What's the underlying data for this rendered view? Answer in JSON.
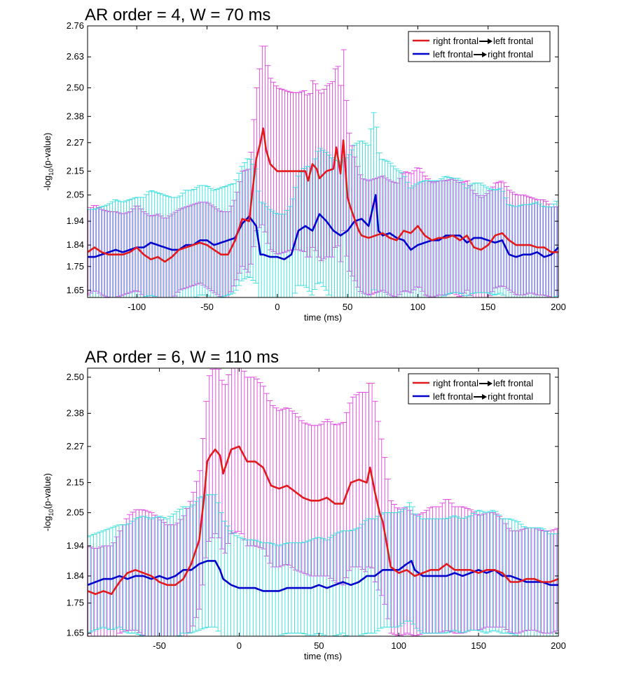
{
  "chart_data": [
    {
      "type": "line",
      "title": "AR order = 4, W = 70 ms",
      "xlabel": "time (ms)",
      "ylabel_main": "-log",
      "ylabel_sub": "10",
      "ylabel_tail": "(p-value)",
      "xlim": [
        -135,
        200
      ],
      "ylim": [
        1.62,
        2.76
      ],
      "xticks": [
        -100,
        -50,
        0,
        50,
        100,
        150,
        200
      ],
      "yticks": [
        1.65,
        1.75,
        1.84,
        1.94,
        2.05,
        2.15,
        2.27,
        2.38,
        2.5,
        2.63,
        2.76
      ],
      "grid": false,
      "legend_position": "top-right",
      "series": [
        {
          "name": "right frontal→left frontal",
          "legend_prefix": "right frontal",
          "legend_suffix": "left frontal",
          "color": "#e31a1c",
          "errorbar_color": "#e040e0",
          "x": [
            -135,
            -130,
            -125,
            -120,
            -115,
            -110,
            -105,
            -100,
            -95,
            -90,
            -85,
            -80,
            -75,
            -70,
            -65,
            -60,
            -55,
            -50,
            -45,
            -40,
            -35,
            -30,
            -25,
            -20,
            -18,
            -15,
            -12,
            -10,
            -8,
            -5,
            0,
            5,
            10,
            15,
            20,
            22,
            25,
            28,
            30,
            35,
            40,
            42,
            45,
            47,
            50,
            52,
            55,
            58,
            60,
            65,
            70,
            75,
            80,
            85,
            90,
            95,
            100,
            105,
            110,
            115,
            120,
            125,
            130,
            135,
            140,
            145,
            150,
            155,
            160,
            165,
            170,
            175,
            180,
            185,
            190,
            195,
            200
          ],
          "y": [
            1.81,
            1.83,
            1.81,
            1.8,
            1.8,
            1.8,
            1.81,
            1.83,
            1.8,
            1.78,
            1.79,
            1.77,
            1.79,
            1.82,
            1.83,
            1.84,
            1.85,
            1.84,
            1.82,
            1.8,
            1.8,
            1.86,
            1.95,
            1.94,
            2.05,
            2.2,
            2.27,
            2.33,
            2.24,
            2.18,
            2.15,
            2.15,
            2.15,
            2.15,
            2.15,
            2.11,
            2.18,
            2.16,
            2.12,
            2.15,
            2.16,
            2.25,
            2.14,
            2.28,
            2.04,
            2.0,
            1.95,
            1.9,
            1.88,
            1.87,
            1.88,
            1.89,
            1.87,
            1.86,
            1.9,
            1.89,
            1.92,
            1.88,
            1.86,
            1.87,
            1.87,
            1.88,
            1.86,
            1.88,
            1.83,
            1.82,
            1.84,
            1.88,
            1.89,
            1.86,
            1.84,
            1.84,
            1.84,
            1.83,
            1.83,
            1.81,
            1.81
          ],
          "err": [
            0.18,
            0.18,
            0.18,
            0.18,
            0.18,
            0.17,
            0.17,
            0.18,
            0.18,
            0.18,
            0.18,
            0.18,
            0.18,
            0.17,
            0.17,
            0.17,
            0.17,
            0.18,
            0.18,
            0.18,
            0.18,
            0.18,
            0.2,
            0.22,
            0.25,
            0.3,
            0.35,
            0.4,
            0.38,
            0.36,
            0.35,
            0.34,
            0.33,
            0.33,
            0.34,
            0.34,
            0.35,
            0.35,
            0.35,
            0.36,
            0.37,
            0.38,
            0.37,
            0.38,
            0.3,
            0.28,
            0.26,
            0.25,
            0.24,
            0.24,
            0.24,
            0.24,
            0.24,
            0.24,
            0.25,
            0.25,
            0.25,
            0.25,
            0.24,
            0.24,
            0.24,
            0.24,
            0.24,
            0.23,
            0.23,
            0.22,
            0.22,
            0.22,
            0.22,
            0.21,
            0.21,
            0.21,
            0.2,
            0.2,
            0.2,
            0.19,
            0.19
          ]
        },
        {
          "name": "left frontal→right frontal",
          "legend_prefix": "left frontal",
          "legend_suffix": "right frontal",
          "color": "#0000cc",
          "errorbar_color": "#33dddd",
          "x": [
            -135,
            -130,
            -125,
            -120,
            -115,
            -110,
            -105,
            -100,
            -95,
            -90,
            -85,
            -80,
            -75,
            -70,
            -65,
            -60,
            -55,
            -50,
            -45,
            -40,
            -35,
            -30,
            -25,
            -20,
            -15,
            -12,
            -10,
            -5,
            0,
            5,
            10,
            15,
            20,
            25,
            30,
            35,
            40,
            45,
            50,
            55,
            60,
            65,
            70,
            72,
            75,
            80,
            85,
            90,
            95,
            100,
            105,
            110,
            115,
            120,
            125,
            130,
            135,
            140,
            145,
            150,
            155,
            160,
            165,
            170,
            175,
            180,
            185,
            190,
            195,
            200
          ],
          "y": [
            1.79,
            1.79,
            1.8,
            1.81,
            1.82,
            1.81,
            1.82,
            1.83,
            1.83,
            1.85,
            1.84,
            1.83,
            1.82,
            1.82,
            1.84,
            1.84,
            1.86,
            1.86,
            1.84,
            1.85,
            1.86,
            1.87,
            1.93,
            1.96,
            1.92,
            1.8,
            1.8,
            1.79,
            1.79,
            1.78,
            1.8,
            1.9,
            1.92,
            1.9,
            1.97,
            1.94,
            1.9,
            1.88,
            1.9,
            1.94,
            1.95,
            1.92,
            2.05,
            1.9,
            1.88,
            1.89,
            1.87,
            1.86,
            1.82,
            1.84,
            1.85,
            1.86,
            1.86,
            1.88,
            1.88,
            1.88,
            1.85,
            1.87,
            1.87,
            1.86,
            1.85,
            1.86,
            1.8,
            1.79,
            1.8,
            1.8,
            1.81,
            1.79,
            1.8,
            1.83
          ],
          "err": [
            0.2,
            0.2,
            0.2,
            0.2,
            0.21,
            0.21,
            0.21,
            0.21,
            0.21,
            0.22,
            0.22,
            0.22,
            0.22,
            0.22,
            0.23,
            0.23,
            0.23,
            0.23,
            0.23,
            0.23,
            0.23,
            0.23,
            0.24,
            0.25,
            0.24,
            0.22,
            0.22,
            0.2,
            0.18,
            0.19,
            0.21,
            0.23,
            0.25,
            0.27,
            0.28,
            0.29,
            0.3,
            0.31,
            0.31,
            0.32,
            0.33,
            0.34,
            0.38,
            0.34,
            0.32,
            0.3,
            0.29,
            0.28,
            0.26,
            0.26,
            0.26,
            0.25,
            0.25,
            0.25,
            0.24,
            0.24,
            0.23,
            0.23,
            0.23,
            0.22,
            0.22,
            0.22,
            0.21,
            0.21,
            0.21,
            0.21,
            0.21,
            0.21,
            0.2,
            0.2
          ]
        }
      ]
    },
    {
      "type": "line",
      "title": "AR order = 6, W = 110 ms",
      "xlabel": "time (ms)",
      "ylabel_main": "-log",
      "ylabel_sub": "10",
      "ylabel_tail": "(p-value)",
      "xlim": [
        -95,
        200
      ],
      "ylim": [
        1.64,
        2.53
      ],
      "xticks": [
        -50,
        0,
        50,
        100,
        150,
        200
      ],
      "yticks": [
        1.65,
        1.75,
        1.84,
        1.94,
        2.05,
        2.15,
        2.27,
        2.38,
        2.5
      ],
      "grid": false,
      "legend_position": "top-right",
      "series": [
        {
          "name": "right frontal→left frontal",
          "legend_prefix": "right frontal",
          "legend_suffix": "left frontal",
          "color": "#e31a1c",
          "errorbar_color": "#e040e0",
          "x": [
            -95,
            -90,
            -85,
            -80,
            -75,
            -70,
            -65,
            -60,
            -55,
            -50,
            -45,
            -40,
            -35,
            -30,
            -25,
            -22,
            -20,
            -18,
            -15,
            -12,
            -10,
            -5,
            0,
            5,
            10,
            15,
            20,
            25,
            30,
            35,
            40,
            45,
            50,
            55,
            60,
            65,
            70,
            75,
            80,
            82,
            85,
            88,
            90,
            95,
            100,
            105,
            110,
            115,
            120,
            125,
            130,
            135,
            140,
            145,
            150,
            155,
            160,
            165,
            170,
            175,
            180,
            185,
            190,
            195,
            200
          ],
          "y": [
            1.79,
            1.78,
            1.79,
            1.78,
            1.82,
            1.85,
            1.86,
            1.85,
            1.84,
            1.82,
            1.81,
            1.81,
            1.83,
            1.88,
            1.96,
            2.1,
            2.22,
            2.24,
            2.26,
            2.24,
            2.18,
            2.26,
            2.27,
            2.22,
            2.22,
            2.2,
            2.14,
            2.13,
            2.14,
            2.12,
            2.1,
            2.09,
            2.09,
            2.1,
            2.08,
            2.08,
            2.15,
            2.16,
            2.15,
            2.2,
            2.12,
            2.05,
            2.02,
            1.87,
            1.85,
            1.86,
            1.84,
            1.85,
            1.86,
            1.86,
            1.88,
            1.86,
            1.86,
            1.86,
            1.85,
            1.86,
            1.86,
            1.85,
            1.82,
            1.82,
            1.83,
            1.83,
            1.82,
            1.82,
            1.83
          ],
          "err": [
            0.15,
            0.15,
            0.15,
            0.16,
            0.17,
            0.19,
            0.2,
            0.21,
            0.21,
            0.21,
            0.2,
            0.2,
            0.21,
            0.22,
            0.23,
            0.25,
            0.27,
            0.28,
            0.28,
            0.28,
            0.28,
            0.28,
            0.28,
            0.28,
            0.28,
            0.27,
            0.27,
            0.26,
            0.26,
            0.26,
            0.25,
            0.25,
            0.25,
            0.26,
            0.26,
            0.27,
            0.28,
            0.29,
            0.3,
            0.31,
            0.3,
            0.27,
            0.25,
            0.22,
            0.21,
            0.21,
            0.2,
            0.2,
            0.21,
            0.21,
            0.22,
            0.21,
            0.21,
            0.2,
            0.19,
            0.19,
            0.19,
            0.18,
            0.17,
            0.17,
            0.17,
            0.17,
            0.17,
            0.17,
            0.17
          ]
        },
        {
          "name": "left frontal→right frontal",
          "legend_prefix": "left frontal",
          "legend_suffix": "right frontal",
          "color": "#0000cc",
          "errorbar_color": "#33dddd",
          "x": [
            -95,
            -90,
            -85,
            -80,
            -75,
            -70,
            -65,
            -60,
            -55,
            -50,
            -45,
            -40,
            -35,
            -30,
            -25,
            -20,
            -15,
            -12,
            -10,
            -5,
            0,
            5,
            10,
            15,
            20,
            25,
            30,
            35,
            40,
            45,
            50,
            55,
            60,
            65,
            70,
            75,
            80,
            85,
            90,
            95,
            100,
            105,
            108,
            110,
            115,
            120,
            125,
            130,
            135,
            140,
            145,
            150,
            155,
            160,
            165,
            170,
            175,
            180,
            185,
            190,
            195,
            200
          ],
          "y": [
            1.81,
            1.82,
            1.83,
            1.83,
            1.84,
            1.83,
            1.84,
            1.84,
            1.83,
            1.84,
            1.83,
            1.84,
            1.86,
            1.86,
            1.88,
            1.89,
            1.89,
            1.86,
            1.83,
            1.81,
            1.8,
            1.8,
            1.8,
            1.79,
            1.79,
            1.79,
            1.8,
            1.8,
            1.8,
            1.8,
            1.81,
            1.8,
            1.81,
            1.82,
            1.81,
            1.82,
            1.84,
            1.84,
            1.86,
            1.86,
            1.86,
            1.88,
            1.89,
            1.86,
            1.84,
            1.84,
            1.84,
            1.84,
            1.85,
            1.84,
            1.85,
            1.86,
            1.85,
            1.86,
            1.84,
            1.84,
            1.83,
            1.82,
            1.82,
            1.82,
            1.81,
            1.81
          ],
          "err": [
            0.16,
            0.16,
            0.16,
            0.17,
            0.17,
            0.18,
            0.19,
            0.2,
            0.2,
            0.2,
            0.2,
            0.21,
            0.21,
            0.21,
            0.22,
            0.22,
            0.22,
            0.21,
            0.2,
            0.18,
            0.17,
            0.16,
            0.16,
            0.16,
            0.16,
            0.15,
            0.15,
            0.15,
            0.15,
            0.16,
            0.16,
            0.16,
            0.17,
            0.17,
            0.18,
            0.18,
            0.19,
            0.19,
            0.19,
            0.19,
            0.19,
            0.19,
            0.2,
            0.19,
            0.19,
            0.19,
            0.19,
            0.19,
            0.19,
            0.19,
            0.19,
            0.2,
            0.2,
            0.2,
            0.19,
            0.19,
            0.19,
            0.18,
            0.18,
            0.18,
            0.17,
            0.17
          ]
        }
      ]
    }
  ]
}
